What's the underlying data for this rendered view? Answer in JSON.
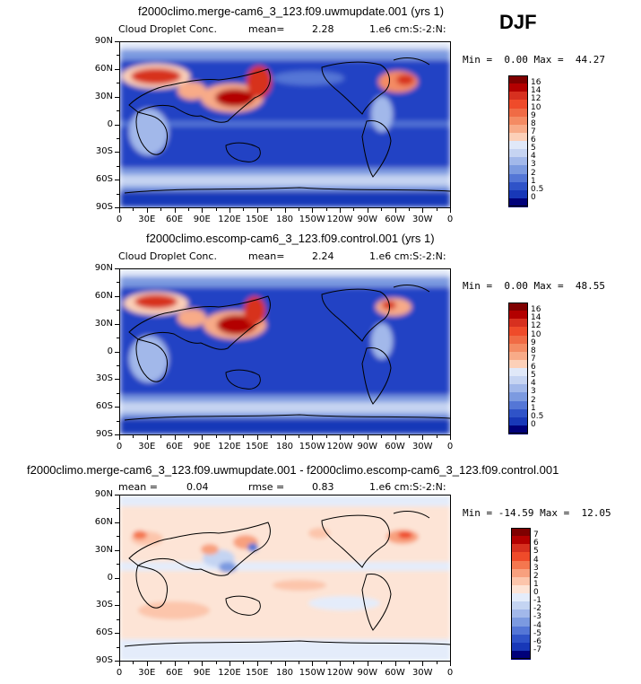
{
  "season": "DJF",
  "xticks": [
    "0",
    "30E",
    "60E",
    "90E",
    "120E",
    "150E",
    "180",
    "150W",
    "120W",
    "90W",
    "60W",
    "30W",
    "0"
  ],
  "yticks": [
    "90N",
    "60N",
    "30N",
    "0",
    "30S",
    "60S",
    "90S"
  ],
  "panels": [
    {
      "title": "f2000climo.merge-cam6_3_123.f09.uwmupdate.001 (yrs 1)",
      "variable": "Cloud Droplet Conc.",
      "stat1_label": "mean=",
      "stat1_value": "2.28",
      "stat2_label": "",
      "stat2_value": "",
      "units": "1.e6 cm:S:-2:N:",
      "min_label": "Min =",
      "min_value": "0.00",
      "max_label": "Max =",
      "max_value": "44.27",
      "colorbar": {
        "labels": [
          "16",
          "14",
          "12",
          "10",
          "9",
          "8",
          "7",
          "6",
          "5",
          "4",
          "3",
          "2",
          "1",
          "0.5",
          "0"
        ],
        "colors": [
          "#7f0000",
          "#b30000",
          "#d7301f",
          "#ef4b2a",
          "#f06b45",
          "#f48b63",
          "#f8ab88",
          "#fcd0b8",
          "#e0e8f8",
          "#c6d4f2",
          "#a2b8ea",
          "#7c9ae0",
          "#5476d6",
          "#2f53c8",
          "#1838b8",
          "#00007a"
        ]
      }
    },
    {
      "title": "f2000climo.escomp-cam6_3_123.f09.control.001 (yrs 1)",
      "variable": "Cloud Droplet Conc.",
      "stat1_label": "mean=",
      "stat1_value": "2.24",
      "stat2_label": "",
      "stat2_value": "",
      "units": "1.e6 cm:S:-2:N:",
      "min_label": "Min =",
      "min_value": "0.00",
      "max_label": "Max =",
      "max_value": "48.55",
      "colorbar": {
        "labels": [
          "16",
          "14",
          "12",
          "10",
          "9",
          "8",
          "7",
          "6",
          "5",
          "4",
          "3",
          "2",
          "1",
          "0.5",
          "0"
        ],
        "colors": [
          "#7f0000",
          "#b30000",
          "#d7301f",
          "#ef4b2a",
          "#f06b45",
          "#f48b63",
          "#f8ab88",
          "#fcd0b8",
          "#e0e8f8",
          "#c6d4f2",
          "#a2b8ea",
          "#7c9ae0",
          "#5476d6",
          "#2f53c8",
          "#1838b8",
          "#00007a"
        ]
      }
    },
    {
      "title": "f2000climo.merge-cam6_3_123.f09.uwmupdate.001 - f2000climo.escomp-cam6_3_123.f09.control.001",
      "variable": "",
      "stat1_label": "mean =",
      "stat1_value": "0.04",
      "stat2_label": "rmse =",
      "stat2_value": "0.83",
      "units": "1.e6 cm:S:-2:N:",
      "min_label": "Min =",
      "min_value": "-14.59",
      "max_label": "Max =",
      "max_value": "12.05",
      "colorbar": {
        "labels": [
          "7",
          "6",
          "5",
          "4",
          "3",
          "2",
          "1",
          "0",
          "-1",
          "-2",
          "-3",
          "-4",
          "-5",
          "-6",
          "-7"
        ],
        "colors": [
          "#7f0000",
          "#b30000",
          "#d7301f",
          "#ef4b2a",
          "#f4774f",
          "#f8a07e",
          "#fcc5ab",
          "#fde4d6",
          "#e4ecfa",
          "#c4d4f2",
          "#a2b8ea",
          "#7c9ae0",
          "#5476d6",
          "#2f53c8",
          "#1838b8",
          "#00007a"
        ]
      }
    }
  ]
}
